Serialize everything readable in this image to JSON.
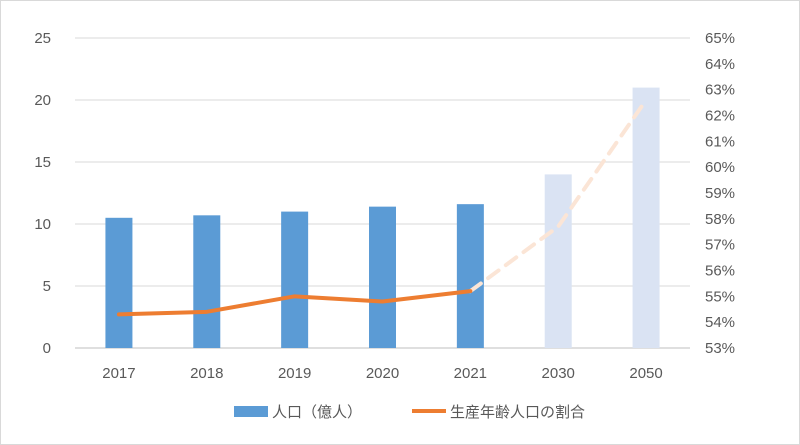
{
  "chart_data": {
    "type": "bar",
    "title": "",
    "xlabel": "",
    "ylabel": "",
    "categories": [
      "2017",
      "2018",
      "2019",
      "2020",
      "2021",
      "2030",
      "2050"
    ],
    "ylim": [
      0,
      25
    ],
    "y_ticks": [
      "0",
      "5",
      "10",
      "15",
      "20",
      "25"
    ],
    "y2lim": [
      0.53,
      0.65
    ],
    "y2_ticks": [
      "53%",
      "54%",
      "55%",
      "56%",
      "57%",
      "58%",
      "59%",
      "60%",
      "61%",
      "62%",
      "63%",
      "64%",
      "65%"
    ],
    "grid": true,
    "legend_position": "bottom",
    "series": [
      {
        "name": "人口（億人）",
        "type": "bar",
        "axis": "left",
        "values": [
          10.5,
          10.7,
          11.0,
          11.4,
          11.6,
          14.0,
          21.0
        ],
        "projected": [
          false,
          false,
          false,
          false,
          false,
          true,
          true
        ],
        "color": "#5b9bd5",
        "projected_color": "#dae3f3"
      },
      {
        "name": "生産年齢人口の割合",
        "type": "line",
        "axis": "right",
        "values": [
          0.543,
          0.544,
          0.55,
          0.548,
          0.552,
          0.577,
          0.626
        ],
        "projected": [
          false,
          false,
          false,
          false,
          false,
          true,
          true
        ],
        "color": "#ed7d31",
        "projected_color": "#fbe5d6"
      }
    ]
  }
}
